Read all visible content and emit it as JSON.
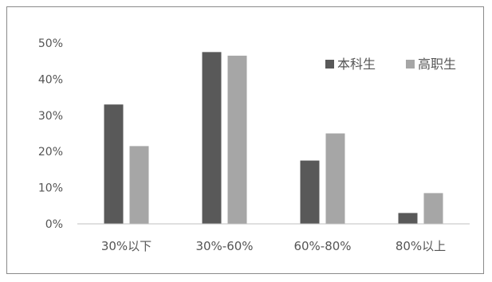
{
  "chart_data": {
    "type": "bar",
    "categories": [
      "30%以下",
      "30%-60%",
      "60%-80%",
      "80%以上"
    ],
    "series": [
      {
        "name": "本科生",
        "values": [
          33,
          47.5,
          17.5,
          3
        ],
        "color": "#595959"
      },
      {
        "name": "高职生",
        "values": [
          21.5,
          46.5,
          25,
          8.5
        ],
        "color": "#a6a6a6"
      }
    ],
    "y_ticks": [
      "0%",
      "10%",
      "20%",
      "30%",
      "40%",
      "50%"
    ],
    "ylim": [
      0,
      50
    ],
    "grid": false,
    "legend_position": "top-right"
  }
}
